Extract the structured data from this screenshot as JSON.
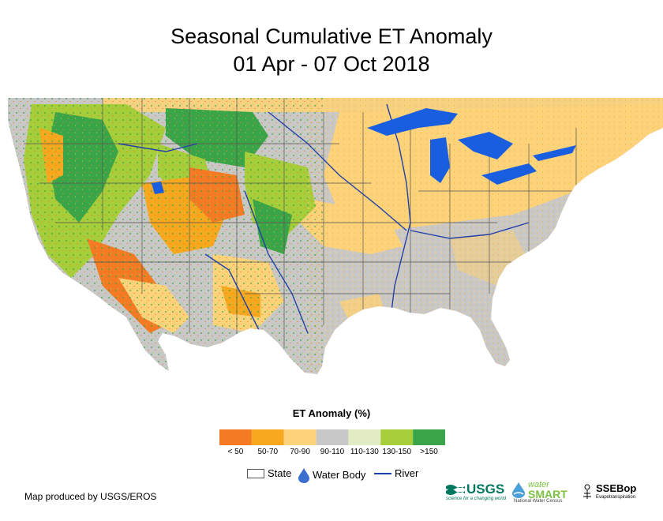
{
  "title_line1": "Seasonal Cumulative ET Anomaly",
  "title_line2": "01 Apr - 07 Oct 2018",
  "legend": {
    "title": "ET Anomaly (%)",
    "classes": [
      {
        "label": "< 50",
        "color": "#f47a24"
      },
      {
        "label": "50-70",
        "color": "#f7a81e"
      },
      {
        "label": "70-90",
        "color": "#fcd27a"
      },
      {
        "label": "90-110",
        "color": "#c8c8c8"
      },
      {
        "label": "110-130",
        "color": "#e2ecc4"
      },
      {
        "label": "130-150",
        "color": "#a6ce3a"
      },
      {
        "label": ">150",
        "color": "#3aa548"
      }
    ]
  },
  "map_keys": {
    "state": "State",
    "water_body": "Water Body",
    "river": "River"
  },
  "colors": {
    "water": "#1a5ee0",
    "river": "#2340a8",
    "state_border": "#555555",
    "land_base": "#c8c8c8"
  },
  "credit": "Map produced by USGS/EROS",
  "logos": {
    "usgs": "USGS",
    "usgs_tagline": "science for a changing world",
    "watersmart": "SMART",
    "watersmart_prefix": "water",
    "watersmart_tagline": "National Water Census",
    "ssebop": "SSEBop",
    "ssebop_tagline": "Evapotranspiration"
  }
}
